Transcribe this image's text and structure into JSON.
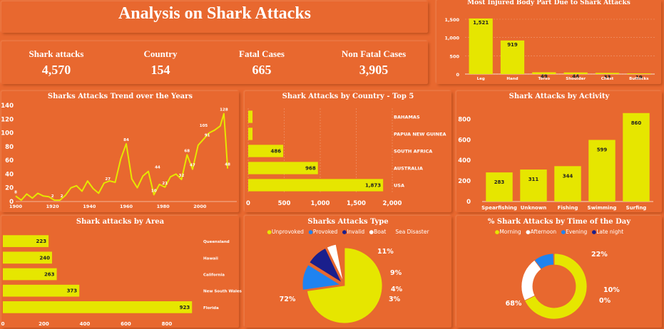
{
  "title": "Analysis on Shark Attacks",
  "kpis": {
    "attacks_label": "Shark attacks",
    "attacks_value": "4,570",
    "country_label": "Country",
    "country_value": "154",
    "fatal_label": "Fatal Cases",
    "fatal_value": "665",
    "nonfatal_label": "Non Fatal Cases",
    "nonfatal_value": "3,905"
  },
  "chart_data": [
    {
      "id": "injured",
      "type": "bar",
      "title": "Most Injured Body Part Due to Shark Attacks",
      "categories": [
        "Leg",
        "Hand",
        "Torso",
        "Shoulder",
        "Chest",
        "Buttocks"
      ],
      "values": [
        1521,
        919,
        49,
        44,
        33,
        19
      ],
      "ylim": [
        0,
        1500
      ],
      "yticks": [
        "0",
        "500",
        "1,000",
        "1,500"
      ]
    },
    {
      "id": "trend",
      "type": "line",
      "title": "Sharks Attacks Trend over the Years",
      "x": [
        1900,
        1903,
        1906,
        1909,
        1912,
        1915,
        1918,
        1921,
        1924,
        1927,
        1930,
        1933,
        1936,
        1939,
        1942,
        1945,
        1948,
        1951,
        1954,
        1957,
        1960,
        1963,
        1966,
        1969,
        1972,
        1975,
        1978,
        1981,
        1984,
        1987,
        1990,
        1993,
        1996,
        1999,
        2002,
        2005,
        2008,
        2011,
        2013,
        2014,
        2015
      ],
      "values": [
        8,
        2,
        11,
        5,
        12,
        8,
        7,
        2,
        2,
        9,
        20,
        23,
        15,
        30,
        19,
        12,
        27,
        30,
        28,
        62,
        84,
        33,
        20,
        37,
        44,
        10,
        25,
        21,
        36,
        40,
        32,
        68,
        47,
        82,
        91,
        100,
        104,
        110,
        128,
        90,
        48
      ],
      "labels": [
        {
          "x": 1900,
          "y": 8,
          "text": "8"
        },
        {
          "x": 1920,
          "y": 2,
          "text": "2"
        },
        {
          "x": 1925,
          "y": 2,
          "text": "2"
        },
        {
          "x": 1950,
          "y": 27,
          "text": "27"
        },
        {
          "x": 1960,
          "y": 84,
          "text": "84"
        },
        {
          "x": 1975,
          "y": 10,
          "text": "10"
        },
        {
          "x": 1977,
          "y": 44,
          "text": "44"
        },
        {
          "x": 1981,
          "y": 21,
          "text": "21"
        },
        {
          "x": 1990,
          "y": 32,
          "text": "32"
        },
        {
          "x": 1993,
          "y": 68,
          "text": "68"
        },
        {
          "x": 1996,
          "y": 47,
          "text": "47"
        },
        {
          "x": 2004,
          "y": 91,
          "text": "91"
        },
        {
          "x": 2002,
          "y": 105,
          "text": "105"
        },
        {
          "x": 2013,
          "y": 128,
          "text": "128"
        },
        {
          "x": 2015,
          "y": 48,
          "text": "48"
        }
      ],
      "xlim": [
        1900,
        2020
      ],
      "ylim": [
        0,
        140
      ],
      "xticks": [
        "1900",
        "1920",
        "1940",
        "1960",
        "1980",
        "2000"
      ],
      "yticks": [
        "0",
        "20",
        "40",
        "60",
        "80",
        "100",
        "120",
        "140"
      ]
    },
    {
      "id": "country",
      "type": "bar",
      "orientation": "horizontal",
      "title": "Shark Attacks by Country - Top 5",
      "categories": [
        "BAHAMAS",
        "PAPUA NEW GUINEA",
        "SOUTH AFRICA",
        "AUSTRALIA",
        "USA"
      ],
      "values": [
        60,
        60,
        486,
        968,
        1873
      ],
      "labels": [
        "",
        "",
        "486",
        "968",
        "1,873"
      ],
      "xlim": [
        0,
        2000
      ],
      "xticks": [
        "0",
        "500",
        "1,000",
        "1,500",
        "2,000"
      ]
    },
    {
      "id": "activity",
      "type": "bar",
      "title": "Shark Attacks by Activity",
      "categories": [
        "Spearfishing",
        "Unknown",
        "Fishing",
        "Swimming",
        "Surfing"
      ],
      "values": [
        283,
        311,
        344,
        599,
        860
      ],
      "ylim": [
        0,
        900
      ],
      "yticks": [
        "0",
        "200",
        "400",
        "600",
        "800"
      ]
    },
    {
      "id": "area",
      "type": "bar",
      "orientation": "horizontal",
      "title": "Shark attacks by Area",
      "categories": [
        "Queensland",
        "Hawaii",
        "California",
        "New South Wales",
        "Florida"
      ],
      "values": [
        223,
        240,
        263,
        373,
        923
      ],
      "xlim": [
        0,
        950
      ],
      "xticks": [
        "0",
        "200",
        "400",
        "600",
        "800"
      ]
    },
    {
      "id": "type",
      "type": "pie",
      "title": "Sharks Attacks Type",
      "legend": [
        "Unprovoked",
        "Provoked",
        "Invalid",
        "Boat",
        "Sea Disaster"
      ],
      "values": [
        72,
        11,
        9,
        4,
        3
      ],
      "labels": [
        "72%",
        "11%",
        "9%",
        "4%",
        "3%"
      ],
      "colors": [
        "#E6E600",
        "#1F83F0",
        "#1A1F8C",
        "#FFFFFF",
        "#E8682F"
      ]
    },
    {
      "id": "time",
      "type": "pie",
      "title": "% Shark Attacks by Time of the Day",
      "legend": [
        "Morning",
        "Afternoon",
        "Evening",
        "Late night"
      ],
      "values": [
        68,
        22,
        10,
        0.3
      ],
      "labels": [
        "68%",
        "22%",
        "10%",
        "0%"
      ],
      "colors": [
        "#E6E600",
        "#FFFFFF",
        "#1F83F0",
        "#1A1F8C"
      ]
    }
  ]
}
